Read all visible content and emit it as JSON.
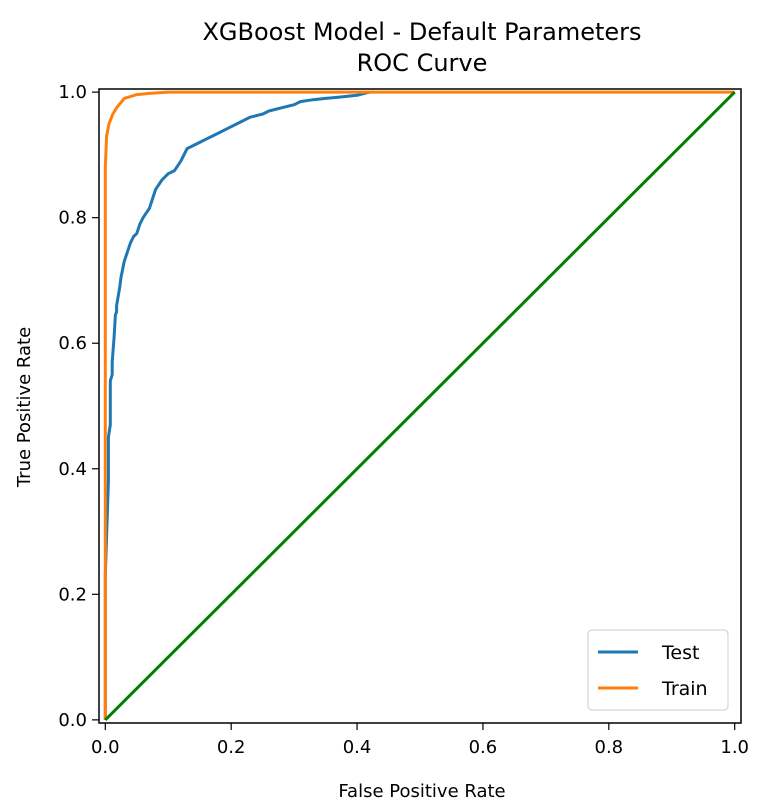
{
  "chart_data": {
    "type": "line",
    "title": "XGBoost Model - Default Parameters",
    "subtitle": "ROC Curve",
    "xlabel": "False Positive Rate",
    "ylabel": "True Positive Rate",
    "xlim": [
      -0.01,
      1.01
    ],
    "ylim": [
      -0.005,
      1.005
    ],
    "xticks": [
      "0.0",
      "0.2",
      "0.4",
      "0.6",
      "0.8",
      "1.0"
    ],
    "yticks": [
      "0.0",
      "0.2",
      "0.4",
      "0.6",
      "0.8",
      "1.0"
    ],
    "grid": false,
    "legend_position": "lower-right",
    "series": [
      {
        "name": "Test",
        "color": "#1f77b4",
        "x": [
          0.0,
          0.0,
          0.005,
          0.005,
          0.008,
          0.008,
          0.011,
          0.011,
          0.014,
          0.016,
          0.018,
          0.018,
          0.023,
          0.025,
          0.03,
          0.035,
          0.04,
          0.045,
          0.05,
          0.055,
          0.06,
          0.07,
          0.075,
          0.08,
          0.09,
          0.1,
          0.11,
          0.12,
          0.13,
          0.14,
          0.15,
          0.16,
          0.17,
          0.19,
          0.2,
          0.21,
          0.22,
          0.23,
          0.25,
          0.26,
          0.28,
          0.3,
          0.31,
          0.33,
          0.35,
          0.37,
          0.4,
          0.42
        ],
        "y": [
          0.0,
          0.23,
          0.38,
          0.45,
          0.47,
          0.54,
          0.55,
          0.57,
          0.61,
          0.645,
          0.65,
          0.66,
          0.69,
          0.705,
          0.73,
          0.745,
          0.76,
          0.77,
          0.775,
          0.79,
          0.8,
          0.815,
          0.83,
          0.845,
          0.86,
          0.87,
          0.875,
          0.89,
          0.91,
          0.915,
          0.92,
          0.925,
          0.93,
          0.94,
          0.945,
          0.95,
          0.955,
          0.96,
          0.965,
          0.97,
          0.975,
          0.98,
          0.985,
          0.988,
          0.99,
          0.992,
          0.995,
          1.0
        ]
      },
      {
        "name": "Train",
        "color": "#ff7f0e",
        "x": [
          0.0,
          0.0,
          0.002,
          0.004,
          0.006,
          0.008,
          0.01,
          0.012,
          0.015,
          0.018,
          0.022,
          0.026,
          0.03,
          0.04,
          0.05,
          0.07,
          0.1,
          1.0
        ],
        "y": [
          0.0,
          0.88,
          0.93,
          0.94,
          0.95,
          0.955,
          0.96,
          0.965,
          0.97,
          0.975,
          0.98,
          0.985,
          0.99,
          0.993,
          0.996,
          0.998,
          1.0,
          1.0
        ]
      },
      {
        "color": "#008000",
        "x": [
          0.0,
          1.0
        ],
        "y": [
          0.0,
          1.0
        ]
      }
    ]
  }
}
